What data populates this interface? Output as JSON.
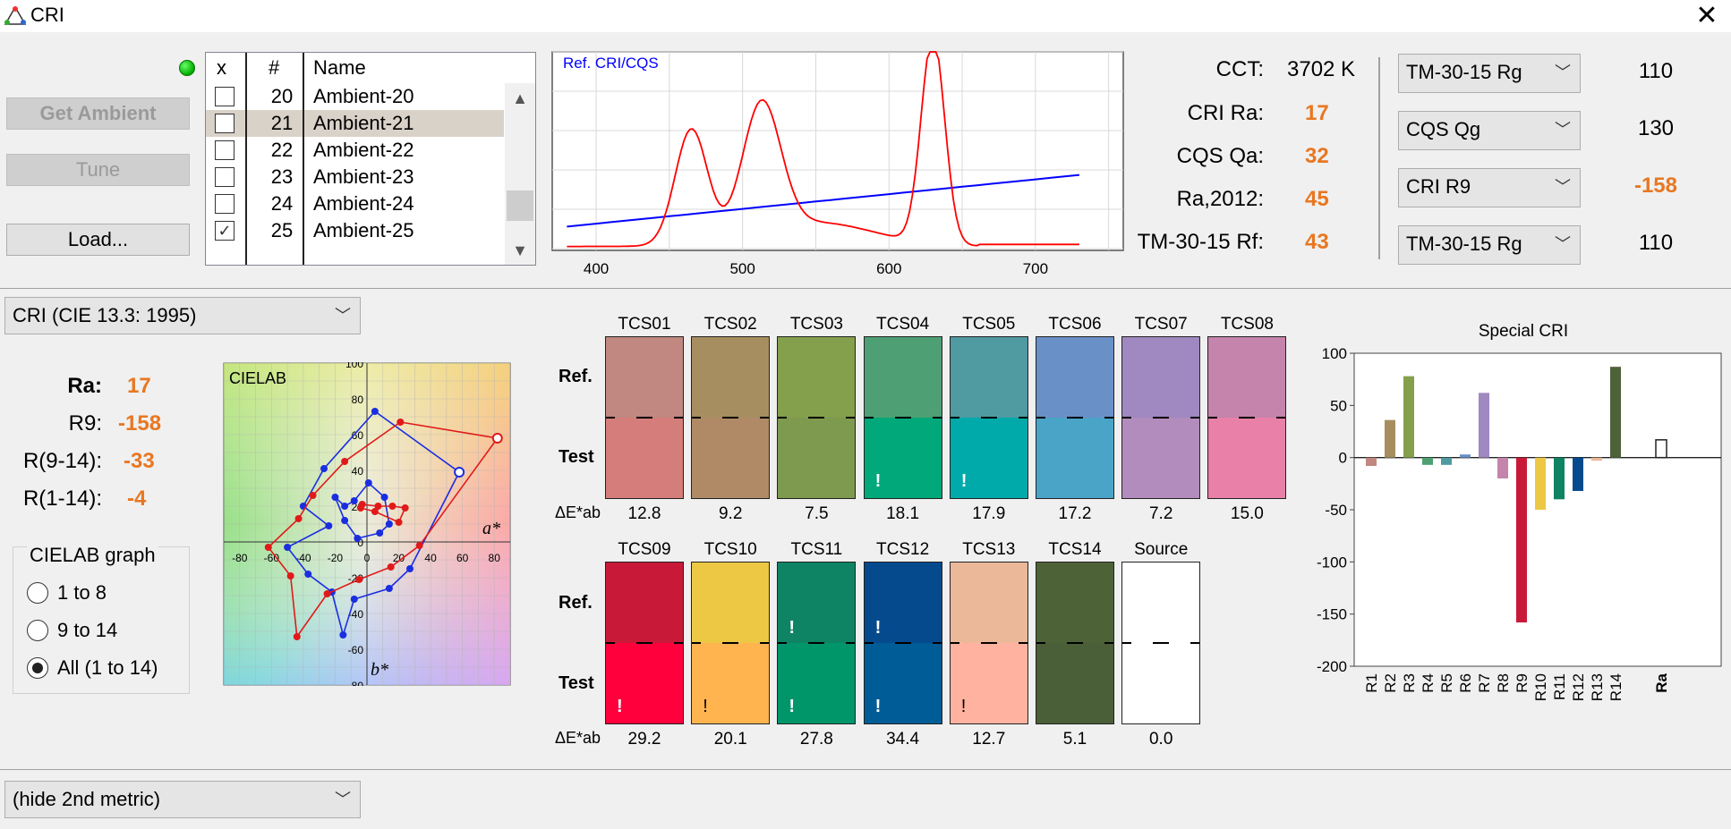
{
  "window": {
    "title": "CRI",
    "close_glyph": "✕"
  },
  "buttons": {
    "get_ambient": "Get Ambient",
    "tune": "Tune",
    "load": "Load..."
  },
  "measurements": {
    "headers": {
      "x": "x",
      "num": "#",
      "name": "Name"
    },
    "rows": [
      {
        "num": "20",
        "name": "Ambient-20",
        "checked": false,
        "selected": false
      },
      {
        "num": "21",
        "name": "Ambient-21",
        "checked": false,
        "selected": true
      },
      {
        "num": "22",
        "name": "Ambient-22",
        "checked": false,
        "selected": false
      },
      {
        "num": "23",
        "name": "Ambient-23",
        "checked": false,
        "selected": false
      },
      {
        "num": "24",
        "name": "Ambient-24",
        "checked": false,
        "selected": false
      },
      {
        "num": "25",
        "name": "Ambient-25",
        "checked": true,
        "selected": false
      }
    ]
  },
  "spectrum": {
    "legend": "Ref. CRI/CQS",
    "x_ticks": [
      "400",
      "500",
      "600",
      "700"
    ],
    "xlim": [
      370,
      760
    ],
    "test_color": "#ff0000",
    "ref_color": "#0000ff"
  },
  "metrics": {
    "cct_label": "CCT:",
    "cct_value": "3702 K",
    "cri_ra_label": "CRI Ra:",
    "cri_ra_value": "17",
    "cqs_qa_label": "CQS Qa:",
    "cqs_qa_value": "32",
    "ra2012_label": "Ra,2012:",
    "ra2012_value": "45",
    "tm30_rf_label": "TM-30-15 Rf:",
    "tm30_rf_value": "43"
  },
  "selectors": [
    {
      "label": "TM-30-15 Rg",
      "value": "110",
      "highlight": false
    },
    {
      "label": "CQS Qg",
      "value": "130",
      "highlight": false
    },
    {
      "label": "CRI R9",
      "value": "-158",
      "highlight": true
    },
    {
      "label": "TM-30-15 Rg",
      "value": "110",
      "highlight": false
    }
  ],
  "cri_method": "CRI (CIE 13.3: 1995)",
  "cri_summary": {
    "ra_label": "Ra:",
    "ra_value": "17",
    "r9_label": "R9:",
    "r9_value": "-158",
    "r914_label": "R(9-14):",
    "r914_value": "-33",
    "r114_label": "R(1-14):",
    "r114_value": "-4"
  },
  "cielab_graph": {
    "title": "CIELAB graph",
    "options": [
      "1 to 8",
      "9 to 14",
      "All (1 to 14)"
    ],
    "selected_index": 2
  },
  "cielab_plot": {
    "label": "CIELAB",
    "a_axis": "a*",
    "b_axis": "b*",
    "x_ticks": [
      "-80",
      "-60",
      "-40",
      "-20",
      "0",
      "20",
      "40",
      "60",
      "80"
    ],
    "y_ticks": [
      "100",
      "80",
      "60",
      "40",
      "20",
      "0",
      "-20",
      "-40",
      "-60",
      "-80"
    ]
  },
  "tcs": {
    "ref_label": "Ref.",
    "test_label": "Test",
    "de_label": "ΔE*ab",
    "row1": [
      {
        "name": "TCS01",
        "ref": "#c08880",
        "test": "#d47d7a",
        "de": "12.8",
        "warn": false
      },
      {
        "name": "TCS02",
        "ref": "#a68e60",
        "test": "#b08a66",
        "de": "9.2",
        "warn": false
      },
      {
        "name": "TCS03",
        "ref": "#84a04c",
        "test": "#7e9a4e",
        "de": "7.5",
        "warn": false
      },
      {
        "name": "TCS04",
        "ref": "#4ea074",
        "test": "#00a87a",
        "de": "18.1",
        "warn": true
      },
      {
        "name": "TCS05",
        "ref": "#509aa2",
        "test": "#00aaaa",
        "de": "17.9",
        "warn": true
      },
      {
        "name": "TCS06",
        "ref": "#6a90c8",
        "test": "#4aa4c8",
        "de": "17.2",
        "warn": false
      },
      {
        "name": "TCS07",
        "ref": "#a088c0",
        "test": "#b28cbc",
        "de": "7.2",
        "warn": false
      },
      {
        "name": "TCS08",
        "ref": "#c484ac",
        "test": "#e880a8",
        "de": "15.0",
        "warn": false
      }
    ],
    "row2": [
      {
        "name": "TCS09",
        "ref": "#c81a38",
        "test": "#ff003c",
        "de": "29.2",
        "warn": true,
        "ref_warn": false,
        "dark": false
      },
      {
        "name": "TCS10",
        "ref": "#ecc844",
        "test": "#ffb450",
        "de": "20.1",
        "warn": true,
        "ref_warn": false,
        "dark": true
      },
      {
        "name": "TCS11",
        "ref": "#0e8464",
        "test": "#00966a",
        "de": "27.8",
        "warn": true,
        "ref_warn": true,
        "dark": false
      },
      {
        "name": "TCS12",
        "ref": "#064a8e",
        "test": "#005c96",
        "de": "34.4",
        "warn": true,
        "ref_warn": true,
        "dark": false
      },
      {
        "name": "TCS13",
        "ref": "#ecb89a",
        "test": "#ffb2a0",
        "de": "12.7",
        "warn": true,
        "ref_warn": false,
        "dark": true
      },
      {
        "name": "TCS14",
        "ref": "#4e6238",
        "test": "#4a5e38",
        "de": "5.1",
        "warn": false,
        "ref_warn": false,
        "dark": false
      },
      {
        "name": "Source",
        "ref": "#ffffff",
        "test": "#ffffff",
        "de": "0.0",
        "warn": false,
        "ref_warn": false,
        "dark": false
      }
    ],
    "warn_glyph": "!"
  },
  "second_metric": "(hide 2nd metric)",
  "chart_data": {
    "type": "bar",
    "title": "Special CRI",
    "categories": [
      "R1",
      "R2",
      "R3",
      "R4",
      "R5",
      "R6",
      "R7",
      "R8",
      "R9",
      "R10",
      "R11",
      "R12",
      "R13",
      "R14",
      "Ra"
    ],
    "values": [
      -8,
      36,
      78,
      -7,
      -7,
      3,
      62,
      -20,
      -158,
      -50,
      -40,
      -32,
      -3,
      87,
      17
    ],
    "colors": [
      "#c08880",
      "#a68e60",
      "#84a04c",
      "#4ea074",
      "#509aa2",
      "#6a90c8",
      "#a088c0",
      "#c484ac",
      "#c81a38",
      "#ecc844",
      "#0e8464",
      "#064a8e",
      "#ecb89a",
      "#4e6238",
      "#ffffff"
    ],
    "ylim": [
      -200,
      100
    ],
    "y_ticks": [
      "100",
      "50",
      "0",
      "-50",
      "-100",
      "-150",
      "-200"
    ]
  }
}
